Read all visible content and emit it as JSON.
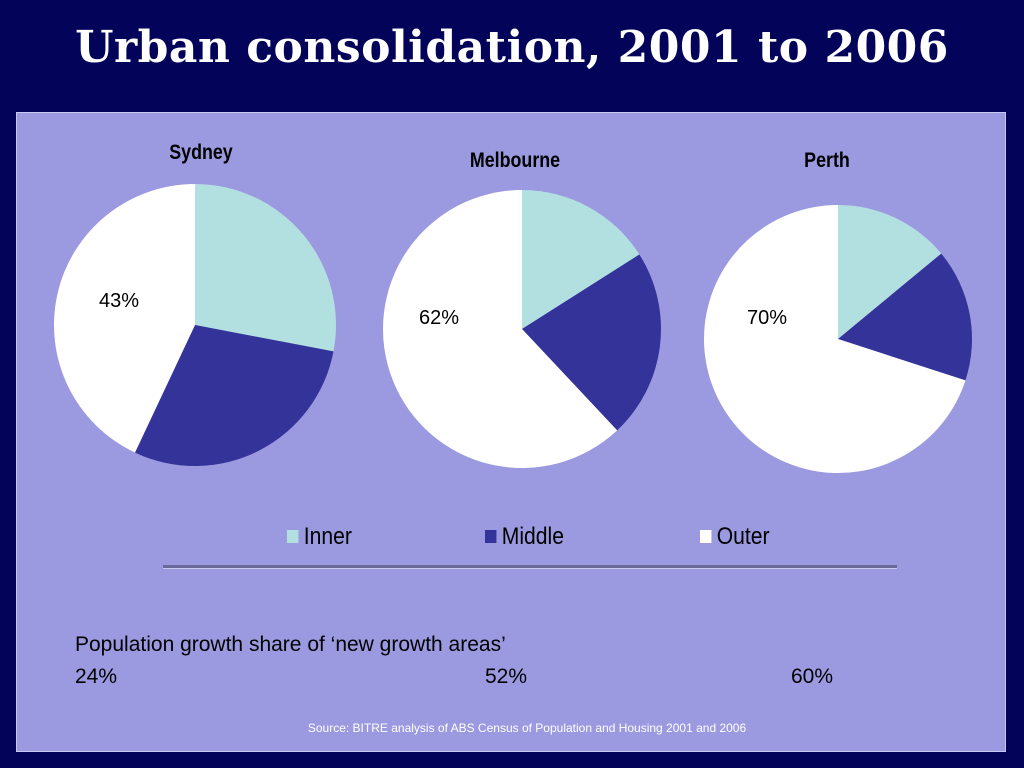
{
  "slide": {
    "title": "Urban consolidation, 2001 to 2006"
  },
  "chart_data": {
    "type": "pie",
    "legend": {
      "placement": "bottom",
      "entries": [
        {
          "key": "inner",
          "label": "Inner",
          "color": "#b2e0e0"
        },
        {
          "key": "middle",
          "label": "Middle",
          "color": "#343399"
        },
        {
          "key": "outer",
          "label": "Outer",
          "color": "#ffffff"
        }
      ]
    },
    "pies": [
      {
        "title": "Sydney",
        "label": "43%",
        "slices": [
          {
            "key": "inner",
            "value": 28
          },
          {
            "key": "middle",
            "value": 29
          },
          {
            "key": "outer",
            "value": 43
          }
        ]
      },
      {
        "title": "Melbourne",
        "label": "62%",
        "slices": [
          {
            "key": "inner",
            "value": 16
          },
          {
            "key": "middle",
            "value": 22
          },
          {
            "key": "outer",
            "value": 62
          }
        ]
      },
      {
        "title": "Perth",
        "label": "70%",
        "slices": [
          {
            "key": "inner",
            "value": 14
          },
          {
            "key": "middle",
            "value": 16
          },
          {
            "key": "outer",
            "value": 70
          }
        ]
      }
    ]
  },
  "notes": {
    "heading": "Population growth share of ‘new growth areas’",
    "values": [
      "24%",
      "52%",
      "60%"
    ]
  },
  "source": "Source: BITRE analysis of ABS Census of Population and Housing 2001 and 2006"
}
